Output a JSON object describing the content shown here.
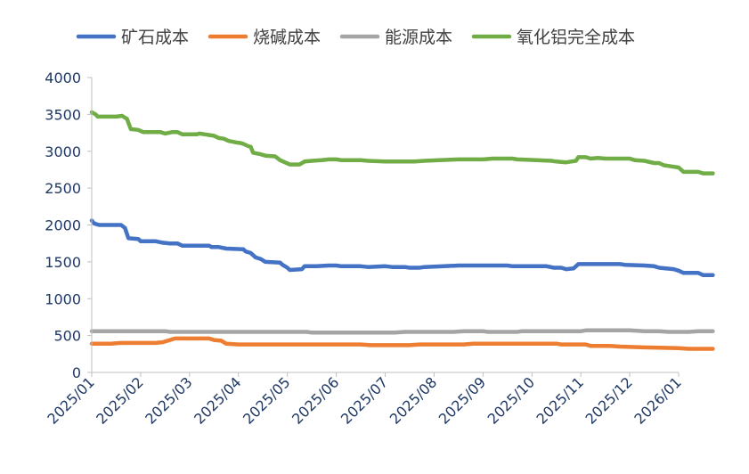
{
  "chart_data": {
    "type": "line",
    "title": "",
    "xlabel": "",
    "ylabel": "",
    "ylim": [
      0,
      4000
    ],
    "yticks": [
      0,
      500,
      1000,
      1500,
      2000,
      2500,
      3000,
      3500,
      4000
    ],
    "x_tick_labels": [
      "2025/01",
      "2025/02",
      "2025/03",
      "2025/04",
      "2025/05",
      "2025/06",
      "2025/07",
      "2025/08",
      "2025/09",
      "2025/10",
      "2025/11",
      "2025/12",
      "2026/01"
    ],
    "grid": false,
    "legend_position": "top",
    "series": [
      {
        "name": "矿石成本",
        "color": "#4472C4",
        "points": [
          [
            0,
            2060
          ],
          [
            0.05,
            2020
          ],
          [
            0.15,
            2000
          ],
          [
            0.6,
            2000
          ],
          [
            0.68,
            1960
          ],
          [
            0.75,
            1820
          ],
          [
            0.95,
            1810
          ],
          [
            1.0,
            1780
          ],
          [
            1.3,
            1780
          ],
          [
            1.45,
            1760
          ],
          [
            1.6,
            1750
          ],
          [
            1.75,
            1750
          ],
          [
            1.85,
            1720
          ],
          [
            2.4,
            1720
          ],
          [
            2.45,
            1700
          ],
          [
            2.6,
            1700
          ],
          [
            2.75,
            1680
          ],
          [
            3.1,
            1670
          ],
          [
            3.15,
            1640
          ],
          [
            3.25,
            1620
          ],
          [
            3.35,
            1560
          ],
          [
            3.45,
            1540
          ],
          [
            3.55,
            1500
          ],
          [
            3.85,
            1490
          ],
          [
            3.9,
            1460
          ],
          [
            4.0,
            1420
          ],
          [
            4.05,
            1390
          ],
          [
            4.3,
            1400
          ],
          [
            4.35,
            1440
          ],
          [
            4.6,
            1440
          ],
          [
            4.85,
            1450
          ],
          [
            5.0,
            1450
          ],
          [
            5.1,
            1440
          ],
          [
            5.5,
            1440
          ],
          [
            5.65,
            1430
          ],
          [
            6.0,
            1440
          ],
          [
            6.15,
            1430
          ],
          [
            6.4,
            1430
          ],
          [
            6.5,
            1420
          ],
          [
            6.7,
            1420
          ],
          [
            6.8,
            1430
          ],
          [
            7.2,
            1440
          ],
          [
            7.5,
            1450
          ],
          [
            8.5,
            1450
          ],
          [
            8.6,
            1440
          ],
          [
            9.0,
            1440
          ],
          [
            9.3,
            1440
          ],
          [
            9.45,
            1420
          ],
          [
            9.6,
            1420
          ],
          [
            9.7,
            1400
          ],
          [
            9.85,
            1410
          ],
          [
            9.95,
            1470
          ],
          [
            10.8,
            1470
          ],
          [
            10.9,
            1460
          ],
          [
            11.3,
            1450
          ],
          [
            11.5,
            1440
          ],
          [
            11.6,
            1420
          ],
          [
            11.9,
            1400
          ],
          [
            12.0,
            1380
          ],
          [
            12.1,
            1350
          ],
          [
            12.4,
            1350
          ],
          [
            12.5,
            1320
          ],
          [
            12.7,
            1320
          ]
        ]
      },
      {
        "name": "烧碱成本",
        "color": "#ED7D31",
        "points": [
          [
            0,
            390
          ],
          [
            0.4,
            390
          ],
          [
            0.6,
            400
          ],
          [
            1.3,
            400
          ],
          [
            1.45,
            410
          ],
          [
            1.6,
            440
          ],
          [
            1.7,
            460
          ],
          [
            2.4,
            460
          ],
          [
            2.5,
            440
          ],
          [
            2.65,
            430
          ],
          [
            2.75,
            390
          ],
          [
            3.0,
            380
          ],
          [
            5.5,
            380
          ],
          [
            5.7,
            370
          ],
          [
            6.5,
            370
          ],
          [
            6.7,
            380
          ],
          [
            7.6,
            380
          ],
          [
            7.8,
            390
          ],
          [
            9.5,
            390
          ],
          [
            9.6,
            380
          ],
          [
            10.1,
            380
          ],
          [
            10.2,
            360
          ],
          [
            10.6,
            360
          ],
          [
            10.8,
            350
          ],
          [
            11.3,
            340
          ],
          [
            12.0,
            330
          ],
          [
            12.2,
            320
          ],
          [
            12.7,
            320
          ]
        ]
      },
      {
        "name": "能源成本",
        "color": "#A5A5A5",
        "points": [
          [
            0,
            560
          ],
          [
            1.5,
            560
          ],
          [
            1.6,
            550
          ],
          [
            4.4,
            550
          ],
          [
            4.5,
            540
          ],
          [
            6.2,
            540
          ],
          [
            6.4,
            550
          ],
          [
            7.4,
            550
          ],
          [
            7.6,
            560
          ],
          [
            8.0,
            560
          ],
          [
            8.1,
            550
          ],
          [
            8.7,
            550
          ],
          [
            8.8,
            560
          ],
          [
            10.0,
            560
          ],
          [
            10.1,
            570
          ],
          [
            11.0,
            570
          ],
          [
            11.3,
            560
          ],
          [
            11.6,
            560
          ],
          [
            11.8,
            550
          ],
          [
            12.2,
            550
          ],
          [
            12.4,
            560
          ],
          [
            12.7,
            560
          ]
        ]
      },
      {
        "name": "氧化铝完全成本",
        "color": "#70AD47",
        "points": [
          [
            0,
            3530
          ],
          [
            0.08,
            3500
          ],
          [
            0.12,
            3470
          ],
          [
            0.5,
            3470
          ],
          [
            0.62,
            3480
          ],
          [
            0.72,
            3440
          ],
          [
            0.8,
            3300
          ],
          [
            0.95,
            3290
          ],
          [
            1.05,
            3260
          ],
          [
            1.4,
            3260
          ],
          [
            1.5,
            3240
          ],
          [
            1.65,
            3260
          ],
          [
            1.75,
            3260
          ],
          [
            1.85,
            3230
          ],
          [
            2.15,
            3230
          ],
          [
            2.2,
            3240
          ],
          [
            2.3,
            3230
          ],
          [
            2.5,
            3210
          ],
          [
            2.6,
            3180
          ],
          [
            2.7,
            3170
          ],
          [
            2.8,
            3140
          ],
          [
            2.95,
            3120
          ],
          [
            3.05,
            3110
          ],
          [
            3.1,
            3100
          ],
          [
            3.2,
            3070
          ],
          [
            3.25,
            3060
          ],
          [
            3.3,
            2980
          ],
          [
            3.45,
            2960
          ],
          [
            3.55,
            2940
          ],
          [
            3.75,
            2930
          ],
          [
            3.85,
            2880
          ],
          [
            3.95,
            2850
          ],
          [
            4.05,
            2820
          ],
          [
            4.25,
            2820
          ],
          [
            4.35,
            2860
          ],
          [
            4.5,
            2870
          ],
          [
            4.7,
            2880
          ],
          [
            4.85,
            2890
          ],
          [
            5.0,
            2890
          ],
          [
            5.1,
            2880
          ],
          [
            5.5,
            2880
          ],
          [
            5.65,
            2870
          ],
          [
            6.0,
            2860
          ],
          [
            6.6,
            2860
          ],
          [
            6.8,
            2870
          ],
          [
            7.1,
            2880
          ],
          [
            7.5,
            2890
          ],
          [
            8.0,
            2890
          ],
          [
            8.2,
            2900
          ],
          [
            8.6,
            2900
          ],
          [
            8.7,
            2890
          ],
          [
            9.1,
            2880
          ],
          [
            9.4,
            2870
          ],
          [
            9.5,
            2860
          ],
          [
            9.7,
            2850
          ],
          [
            9.8,
            2860
          ],
          [
            9.9,
            2870
          ],
          [
            9.95,
            2920
          ],
          [
            10.1,
            2920
          ],
          [
            10.2,
            2900
          ],
          [
            10.35,
            2910
          ],
          [
            10.5,
            2900
          ],
          [
            11.0,
            2900
          ],
          [
            11.1,
            2880
          ],
          [
            11.3,
            2870
          ],
          [
            11.5,
            2840
          ],
          [
            11.6,
            2840
          ],
          [
            11.7,
            2810
          ],
          [
            11.8,
            2800
          ],
          [
            12.0,
            2780
          ],
          [
            12.1,
            2720
          ],
          [
            12.4,
            2720
          ],
          [
            12.5,
            2700
          ],
          [
            12.7,
            2700
          ]
        ]
      }
    ]
  }
}
